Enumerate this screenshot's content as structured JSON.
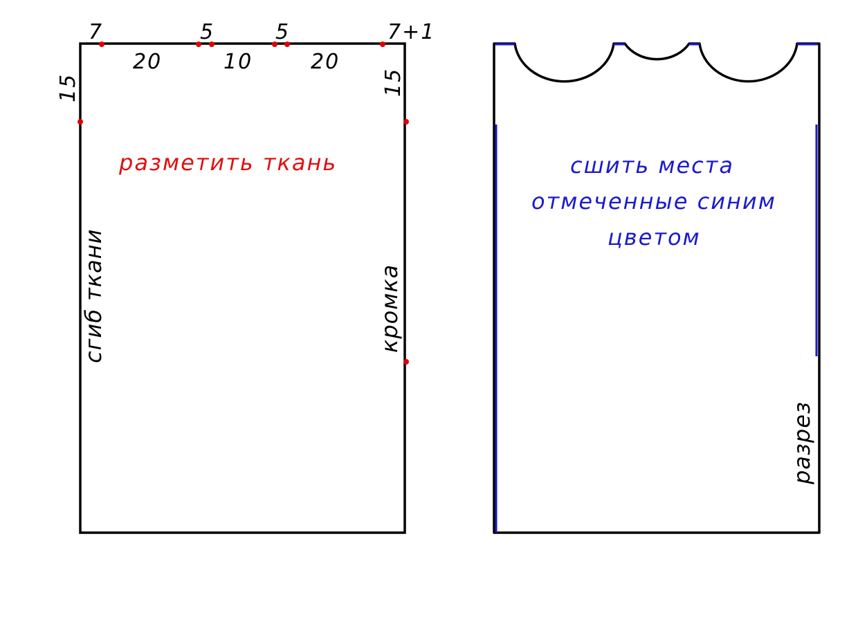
{
  "colors": {
    "outline": "#000000",
    "mark_dot": "#e00000",
    "mark_text": "#e01010",
    "seam": "#1a1acc"
  },
  "left_panel": {
    "top_marks": [
      "7",
      "5",
      "5",
      "7+1"
    ],
    "top_segments": [
      "20",
      "10",
      "20"
    ],
    "left_depth": "15",
    "right_depth": "15",
    "fold_label": "сгиб ткани",
    "selvage_label": "кромка",
    "instruction": "разметить ткань"
  },
  "right_panel": {
    "instruction_lines": [
      "сшить места",
      "отмеченные синим",
      "цветом"
    ],
    "cut_label": "разрез"
  }
}
